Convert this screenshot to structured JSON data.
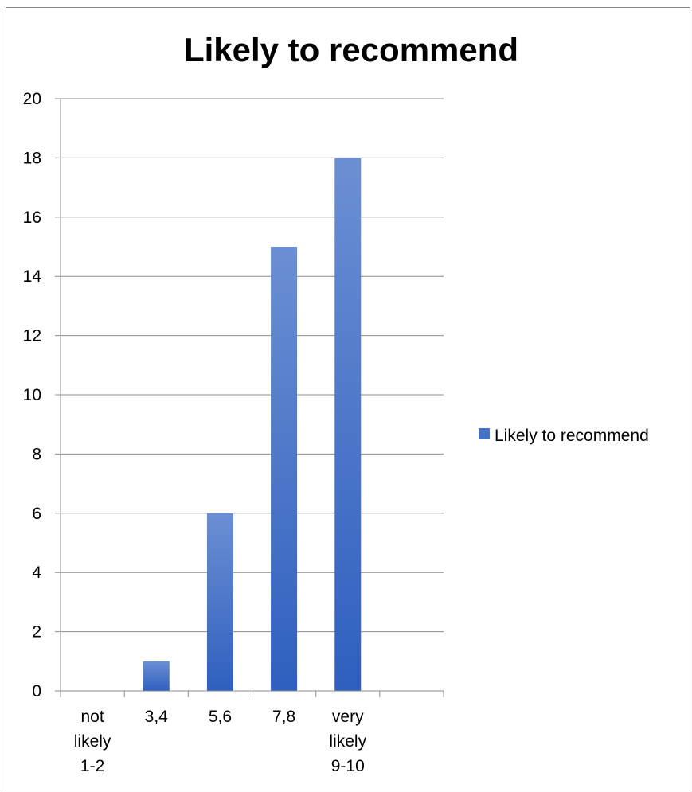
{
  "chart_data": {
    "type": "bar",
    "title": "Likely to recommend",
    "xlabel": "",
    "ylabel": "",
    "categories": [
      [
        "not",
        "likely",
        "1-2"
      ],
      [
        "3,4"
      ],
      [
        "5,6"
      ],
      [
        "7,8"
      ],
      [
        "very",
        "likely",
        "9-10"
      ],
      [
        ""
      ]
    ],
    "series": [
      {
        "name": "Likely to recommend",
        "values": [
          0,
          1,
          6,
          15,
          18,
          0
        ],
        "color": "#4472c4"
      }
    ],
    "ylim": [
      0,
      20
    ],
    "yticks": [
      0,
      2,
      4,
      6,
      8,
      10,
      12,
      14,
      16,
      18,
      20
    ],
    "grid": true,
    "legend_position": "right"
  }
}
